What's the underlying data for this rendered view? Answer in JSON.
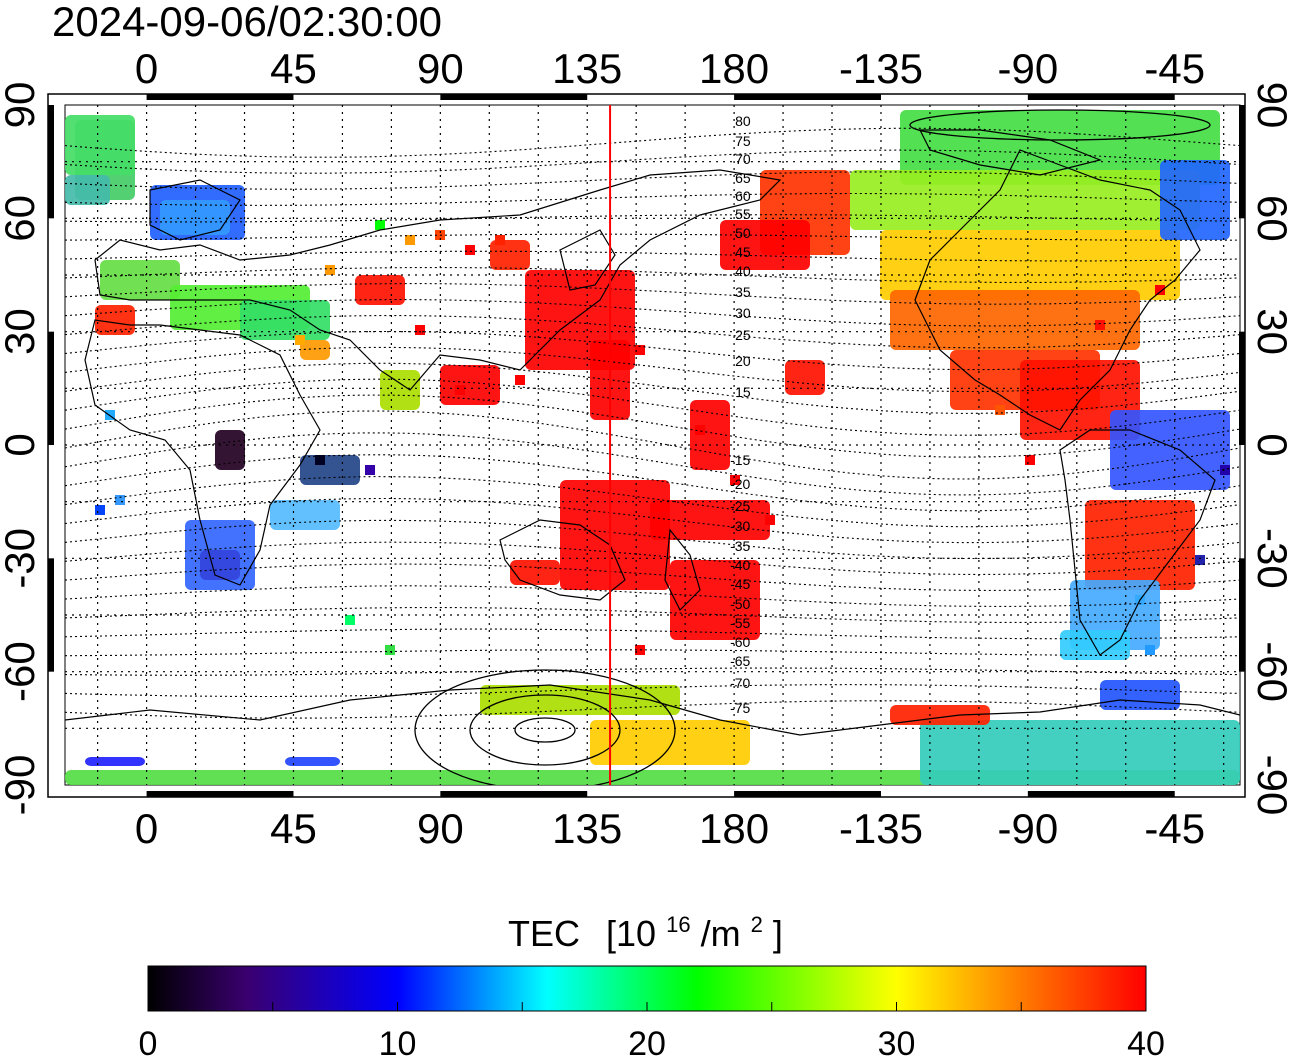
{
  "timestamp": "2024-09-06/02:30:00",
  "colorbar": {
    "title": "TEC",
    "unit_prefix": "[10",
    "unit_exp": "16",
    "unit_mid": "/m",
    "unit_exp2": "2",
    "unit_suffix": "]",
    "min": 0,
    "max": 40,
    "tick_labels": [
      "0",
      "10",
      "20",
      "30",
      "40"
    ],
    "colors": [
      "#000000",
      "#4a0080",
      "#0000ff",
      "#00ffff",
      "#00ff00",
      "#ffff00",
      "#ff0000"
    ]
  },
  "axes": {
    "lon_ticks_top": [
      "0",
      "45",
      "90",
      "135",
      "180",
      "-135",
      "-90",
      "-45"
    ],
    "lon_ticks_bottom": [
      "0",
      "45",
      "90",
      "135",
      "180",
      "-135",
      "-90",
      "-45"
    ],
    "lat_ticks": [
      "90",
      "60",
      "30",
      "0",
      "-30",
      "-60",
      "-90"
    ],
    "lon_range": [
      -25,
      335
    ],
    "lat_range": [
      -90,
      90
    ]
  },
  "marker_line": {
    "lon": 142,
    "color": "#ff0000"
  },
  "mag_lat_labels_north": [
    "80",
    "75",
    "70",
    "65",
    "60",
    "55",
    "50",
    "45",
    "40",
    "35",
    "30",
    "25",
    "20",
    "15"
  ],
  "mag_lat_labels_south": [
    "-15",
    "-20",
    "-25",
    "-30",
    "-35",
    "-40",
    "-45",
    "-50",
    "-55",
    "-60",
    "-65",
    "-70",
    "-75"
  ]
}
